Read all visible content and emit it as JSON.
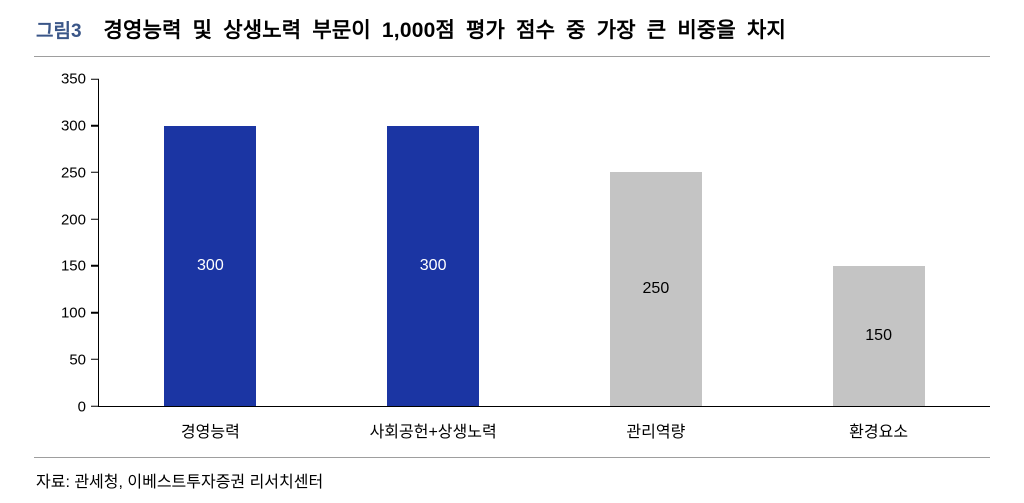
{
  "header": {
    "figure_label": "그림3",
    "title": "경영능력 및 상생노력 부문이 1,000점 평가 점수 중 가장 큰 비중을 차지"
  },
  "chart_data": {
    "type": "bar",
    "categories": [
      "경영능력",
      "사회공헌+상생노력",
      "관리역량",
      "환경요소"
    ],
    "values": [
      300,
      300,
      250,
      150
    ],
    "bar_colors": [
      "#1B35A3",
      "#1B35A3",
      "#C4C4C4",
      "#C4C4C4"
    ],
    "value_label_colors": [
      "#FFFFFF",
      "#FFFFFF",
      "#000000",
      "#000000"
    ],
    "title": "",
    "xlabel": "",
    "ylabel": "",
    "ylim": [
      0,
      350
    ],
    "yticks": [
      0,
      50,
      100,
      150,
      200,
      250,
      300,
      350
    ],
    "grid": false,
    "legend": false
  },
  "footer": {
    "source": "자료: 관세청, 이베스트투자증권 리서치센터"
  }
}
